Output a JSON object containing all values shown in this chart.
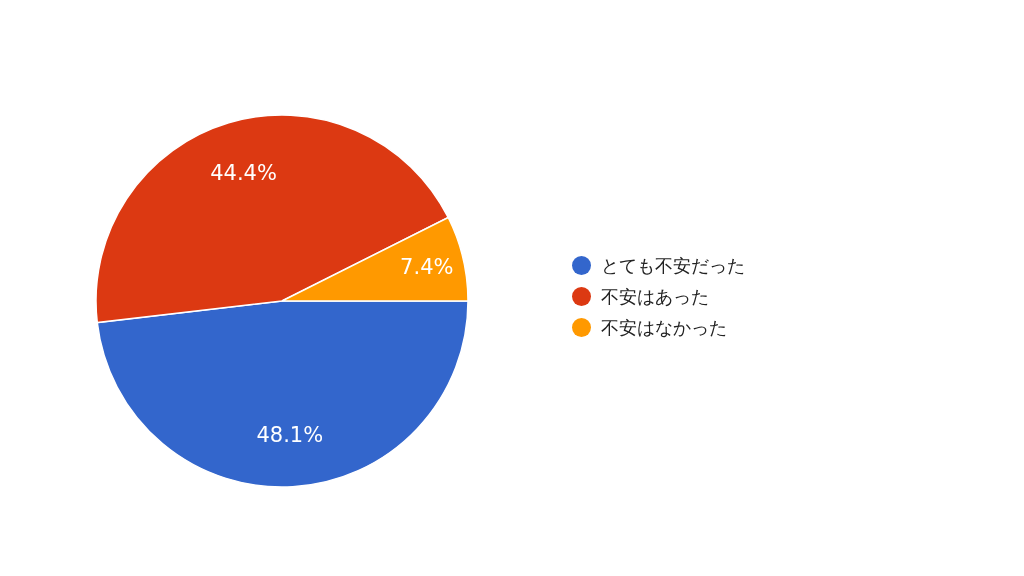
{
  "chart_data": {
    "type": "pie",
    "categories": [
      "とても不安だった",
      "不安はあった",
      "不安はなかった"
    ],
    "values": [
      48.1,
      44.4,
      7.4
    ],
    "colors": [
      "#3366cc",
      "#dc3912",
      "#ff9900"
    ],
    "value_labels": [
      "48.1%",
      "44.4%",
      "7.4%"
    ],
    "legend": "right"
  }
}
